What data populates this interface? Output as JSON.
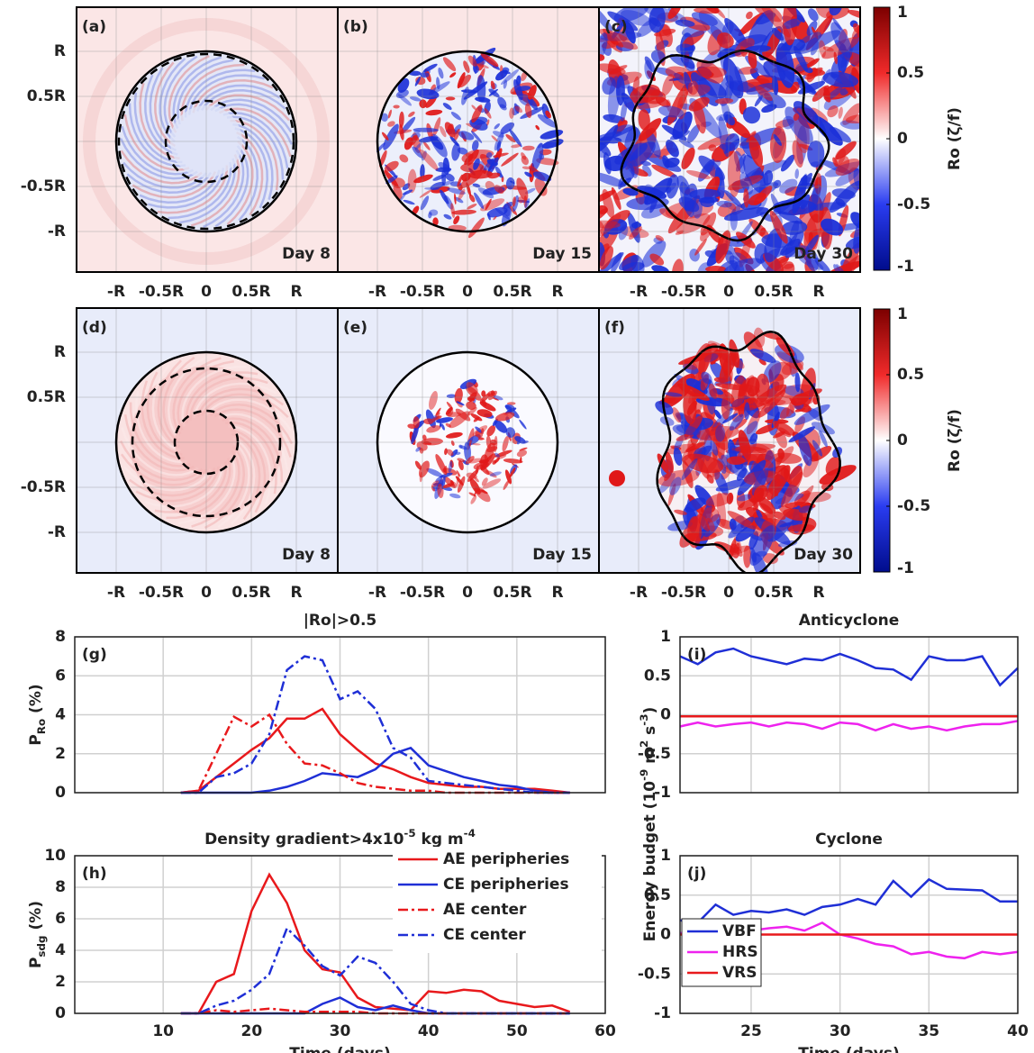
{
  "chart_data": [
    {
      "type": "field",
      "label": "(a)",
      "annotation": "Day 8",
      "xlim": [
        -1.44,
        1.46
      ],
      "ylim": [
        -1.45,
        1.49
      ],
      "xticks": [
        {
          "value": -1,
          "label": "-R"
        },
        {
          "value": -0.5,
          "label": "-0.5R"
        },
        0,
        {
          "value": 0.5,
          "label": "0.5R"
        },
        {
          "value": 1,
          "label": "R"
        }
      ],
      "yticks": [
        {
          "value": -1,
          "label": "-R"
        },
        {
          "value": -0.5,
          "label": "-0.5R"
        },
        0,
        {
          "value": 0.5,
          "label": "0.5R"
        },
        {
          "value": 1,
          "label": "R"
        }
      ],
      "grid": true,
      "circles": [
        {
          "r": 1,
          "dash": false
        },
        {
          "r": 0.97,
          "dash": true
        },
        {
          "r": 0.45,
          "dash": true
        }
      ]
    },
    {
      "type": "field",
      "label": "(b)",
      "annotation": "Day 15",
      "xlim": [
        -1.44,
        1.46
      ],
      "ylim": [
        -1.45,
        1.49
      ],
      "xticks": [
        {
          "value": -1,
          "label": "-R"
        },
        {
          "value": -0.5,
          "label": "-0.5R"
        },
        0,
        {
          "value": 0.5,
          "label": "0.5R"
        },
        {
          "value": 1,
          "label": "R"
        }
      ],
      "yticks": [
        -1,
        -0.5,
        0,
        0.5,
        1
      ],
      "grid": true,
      "circles": [
        {
          "r": 1,
          "dash": false
        }
      ]
    },
    {
      "type": "field",
      "label": "(c)",
      "annotation": "Day 30",
      "xlim": [
        -1.44,
        1.46
      ],
      "ylim": [
        -1.45,
        1.49
      ],
      "xticks": [
        {
          "value": -1,
          "label": "-R"
        },
        {
          "value": -0.5,
          "label": "-0.5R"
        },
        0,
        {
          "value": 0.5,
          "label": "0.5R"
        },
        {
          "value": 1,
          "label": "R"
        }
      ],
      "yticks": [
        -1,
        -0.5,
        0,
        0.5,
        1
      ],
      "grid": true,
      "circles": []
    },
    {
      "type": "field",
      "label": "(d)",
      "annotation": "Day 8",
      "xlim": [
        -1.44,
        1.46
      ],
      "ylim": [
        -1.45,
        1.49
      ],
      "xticks": [
        {
          "value": -1,
          "label": "-R"
        },
        {
          "value": -0.5,
          "label": "-0.5R"
        },
        0,
        {
          "value": 0.5,
          "label": "0.5R"
        },
        {
          "value": 1,
          "label": "R"
        }
      ],
      "yticks": [
        {
          "value": -1,
          "label": "-R"
        },
        {
          "value": -0.5,
          "label": "-0.5R"
        },
        0,
        {
          "value": 0.5,
          "label": "0.5R"
        },
        {
          "value": 1,
          "label": "R"
        }
      ],
      "grid": true,
      "circles": [
        {
          "r": 1,
          "dash": false
        },
        {
          "r": 0.82,
          "dash": true
        },
        {
          "r": 0.35,
          "dash": true
        }
      ]
    },
    {
      "type": "field",
      "label": "(e)",
      "annotation": "Day 15",
      "xlim": [
        -1.44,
        1.46
      ],
      "ylim": [
        -1.45,
        1.49
      ],
      "xticks": [
        {
          "value": -1,
          "label": "-R"
        },
        {
          "value": -0.5,
          "label": "-0.5R"
        },
        0,
        {
          "value": 0.5,
          "label": "0.5R"
        },
        {
          "value": 1,
          "label": "R"
        }
      ],
      "yticks": [
        -1,
        -0.5,
        0,
        0.5,
        1
      ],
      "grid": true,
      "circles": [
        {
          "r": 1,
          "dash": false
        }
      ]
    },
    {
      "type": "field",
      "label": "(f)",
      "annotation": "Day 30",
      "xlim": [
        -1.44,
        1.46
      ],
      "ylim": [
        -1.45,
        1.49
      ],
      "xticks": [
        {
          "value": -1,
          "label": "-R"
        },
        {
          "value": -0.5,
          "label": "-0.5R"
        },
        0,
        {
          "value": 0.5,
          "label": "0.5R"
        },
        {
          "value": 1,
          "label": "R"
        }
      ],
      "yticks": [
        -1,
        -0.5,
        0,
        0.5,
        1
      ],
      "grid": true,
      "circles": []
    },
    {
      "type": "colorbar",
      "label": "Ro (ζ/f)",
      "ylim": [
        -1,
        1
      ],
      "yticks": [
        -1,
        -0.5,
        0,
        0.5,
        1
      ],
      "colors": [
        "#000c8c",
        "#2a3cf0",
        "#ffffff",
        "#f02a2a",
        "#7c0000"
      ]
    },
    {
      "type": "colorbar",
      "label": "Ro (ζ/f)",
      "ylim": [
        -1,
        1
      ],
      "yticks": [
        -1,
        -0.5,
        0,
        0.5,
        1
      ],
      "colors": [
        "#000c8c",
        "#2a3cf0",
        "#ffffff",
        "#f02a2a",
        "#7c0000"
      ]
    },
    {
      "type": "line",
      "label": "(g)",
      "title": "|Ro|>0.5",
      "ylabel": [
        {
          "text": "P"
        },
        {
          "text": "Ro",
          "sub": true
        },
        {
          "text": " (%)"
        }
      ],
      "x": [
        12,
        14,
        16,
        18,
        20,
        22,
        24,
        26,
        28,
        30,
        32,
        34,
        36,
        38,
        40,
        42,
        44,
        46,
        48,
        50,
        52,
        54,
        56
      ],
      "xlim": [
        0,
        60
      ],
      "ylim": [
        0,
        8
      ],
      "xticks": [
        10,
        20,
        30,
        40,
        50,
        60
      ],
      "yticks": [
        0,
        2,
        4,
        6,
        8
      ],
      "grid": true,
      "series": [
        {
          "color": "#e8191c",
          "dash": "solid",
          "values": [
            0,
            0.1,
            0.8,
            1.5,
            2.2,
            2.8,
            3.8,
            3.8,
            4.3,
            3.0,
            2.2,
            1.5,
            1.2,
            0.8,
            0.5,
            0.4,
            0.3,
            0.3,
            0.2,
            0.2,
            0.2,
            0.1,
            0
          ]
        },
        {
          "color": "#1f2fd6",
          "dash": "solid",
          "values": [
            0,
            0,
            0,
            0,
            0,
            0.1,
            0.3,
            0.6,
            1.0,
            0.9,
            0.8,
            1.2,
            2.0,
            2.3,
            1.4,
            1.1,
            0.8,
            0.6,
            0.4,
            0.3,
            0.1,
            0,
            0
          ]
        },
        {
          "color": "#e8191c",
          "dash": "dashdot",
          "values": [
            0,
            0.1,
            2.0,
            3.9,
            3.4,
            4.0,
            2.5,
            1.5,
            1.4,
            1.0,
            0.5,
            0.3,
            0.2,
            0.1,
            0.1,
            0,
            0,
            0,
            0,
            0,
            0,
            0,
            0
          ]
        },
        {
          "color": "#1f2fd6",
          "dash": "dashdot",
          "values": [
            0,
            0,
            0.8,
            1.0,
            1.5,
            3.0,
            6.3,
            7.0,
            6.8,
            4.8,
            5.2,
            4.3,
            2.3,
            1.8,
            0.6,
            0.5,
            0.4,
            0.3,
            0.2,
            0.1,
            0,
            0,
            0
          ]
        }
      ]
    },
    {
      "type": "line",
      "label": "(h)",
      "title": [
        {
          "text": "Density gradient>4x10"
        },
        {
          "text": "-5",
          "sup": true
        },
        {
          "text": " kg m"
        },
        {
          "text": "-4",
          "sup": true
        }
      ],
      "ylabel": [
        {
          "text": "P"
        },
        {
          "text": "sdg",
          "sub": true
        },
        {
          "text": " (%)"
        }
      ],
      "xlabel": "Time (days)",
      "x": [
        12,
        14,
        16,
        18,
        20,
        22,
        24,
        26,
        28,
        30,
        32,
        34,
        36,
        38,
        40,
        42,
        44,
        46,
        48,
        50,
        52,
        54,
        56
      ],
      "xlim": [
        0,
        60
      ],
      "ylim": [
        0,
        10
      ],
      "xticks": [
        10,
        20,
        30,
        40,
        50,
        60
      ],
      "yticks": [
        0,
        2,
        4,
        6,
        8,
        10
      ],
      "grid": true,
      "legend": "upper right",
      "series": [
        {
          "name": "AE peripheries",
          "color": "#e8191c",
          "dash": "solid",
          "values": [
            0,
            0,
            2.0,
            2.5,
            6.5,
            8.8,
            7.0,
            4.0,
            2.8,
            2.6,
            1.0,
            0.4,
            0.3,
            0.2,
            1.4,
            1.3,
            1.5,
            1.4,
            0.8,
            0.6,
            0.4,
            0.5,
            0.1
          ]
        },
        {
          "name": "CE peripheries",
          "color": "#1f2fd6",
          "dash": "solid",
          "values": [
            0,
            0,
            0,
            0,
            0,
            0,
            0,
            0,
            0.6,
            1.0,
            0.4,
            0.2,
            0.5,
            0.2,
            0,
            0,
            0,
            0,
            0,
            0,
            0,
            0,
            0
          ]
        },
        {
          "name": "AE center",
          "color": "#e8191c",
          "dash": "dashdot",
          "values": [
            0,
            0,
            0.2,
            0.1,
            0.2,
            0.3,
            0.2,
            0.1,
            0.1,
            0.1,
            0.1,
            0,
            0,
            0,
            0,
            0,
            0,
            0,
            0,
            0,
            0,
            0,
            0
          ]
        },
        {
          "name": "CE center",
          "color": "#1f2fd6",
          "dash": "dashdot",
          "values": [
            0,
            0,
            0.5,
            0.8,
            1.5,
            2.5,
            5.4,
            4.3,
            3.0,
            2.4,
            3.6,
            3.2,
            2.0,
            0.6,
            0.2,
            0,
            0,
            0,
            0,
            0,
            0,
            0,
            0
          ]
        }
      ]
    },
    {
      "type": "line",
      "label": "(i)",
      "title": "Anticyclone",
      "ylabel": [
        {
          "text": "Energy budget (10"
        },
        {
          "text": "-9",
          "sup": true
        },
        {
          "text": " m"
        },
        {
          "text": "2",
          "sup": true
        },
        {
          "text": " s"
        },
        {
          "text": "-3",
          "sup": true
        },
        {
          "text": ")"
        }
      ],
      "x": [
        21,
        22,
        23,
        24,
        25,
        26,
        27,
        28,
        29,
        30,
        31,
        32,
        33,
        34,
        35,
        36,
        37,
        38,
        39,
        40
      ],
      "xlim": [
        21,
        40
      ],
      "ylim": [
        -1,
        1
      ],
      "xticks": [
        25,
        30,
        35,
        40
      ],
      "yticks": [
        -1,
        -0.5,
        0,
        0.5,
        1
      ],
      "grid": true,
      "series": [
        {
          "color": "#1f2fd6",
          "dash": "solid",
          "values": [
            0.75,
            0.65,
            0.8,
            0.85,
            0.75,
            0.7,
            0.65,
            0.72,
            0.7,
            0.78,
            0.7,
            0.6,
            0.58,
            0.45,
            0.75,
            0.7,
            0.7,
            0.75,
            0.38,
            0.6
          ]
        },
        {
          "color": "#ee22ee",
          "dash": "solid",
          "values": [
            -0.15,
            -0.1,
            -0.15,
            -0.12,
            -0.1,
            -0.15,
            -0.1,
            -0.12,
            -0.18,
            -0.1,
            -0.12,
            -0.2,
            -0.12,
            -0.18,
            -0.15,
            -0.2,
            -0.15,
            -0.12,
            -0.12,
            -0.08
          ]
        },
        {
          "color": "#e8191c",
          "dash": "solid",
          "values": [
            -0.02,
            -0.02,
            -0.02,
            -0.02,
            -0.02,
            -0.02,
            -0.02,
            -0.02,
            -0.02,
            -0.02,
            -0.02,
            -0.02,
            -0.02,
            -0.02,
            -0.02,
            -0.02,
            -0.02,
            -0.02,
            -0.02,
            -0.02
          ]
        }
      ]
    },
    {
      "type": "line",
      "label": "(j)",
      "title": "Cyclone",
      "xlabel": "Time (days)",
      "x": [
        21,
        22,
        23,
        24,
        25,
        26,
        27,
        28,
        29,
        30,
        31,
        32,
        33,
        34,
        35,
        36,
        37,
        38,
        39,
        40
      ],
      "xlim": [
        21,
        40
      ],
      "ylim": [
        -1,
        1
      ],
      "xticks": [
        25,
        30,
        35,
        40
      ],
      "yticks": [
        -1,
        -0.5,
        0,
        0.5,
        1
      ],
      "grid": true,
      "legend": "lower left",
      "series": [
        {
          "name": "VBF",
          "color": "#1f2fd6",
          "dash": "solid",
          "values": [
            0.18,
            0.15,
            0.38,
            0.25,
            0.3,
            0.28,
            0.32,
            0.25,
            0.35,
            0.38,
            0.45,
            0.38,
            0.68,
            0.48,
            0.7,
            0.58,
            0.57,
            0.56,
            0.42,
            0.42
          ]
        },
        {
          "name": "HRS",
          "color": "#ee22ee",
          "dash": "solid",
          "values": [
            0.02,
            0.0,
            0.03,
            0.02,
            0.05,
            0.08,
            0.1,
            0.05,
            0.15,
            0.0,
            -0.05,
            -0.12,
            -0.15,
            -0.25,
            -0.22,
            -0.28,
            -0.3,
            -0.22,
            -0.25,
            -0.22
          ]
        },
        {
          "name": "VRS",
          "color": "#e8191c",
          "dash": "solid",
          "values": [
            0,
            0,
            0,
            0,
            0,
            0,
            0,
            0,
            0,
            0,
            0,
            0,
            0,
            0,
            0,
            0,
            0,
            0,
            0,
            0
          ]
        }
      ]
    }
  ]
}
